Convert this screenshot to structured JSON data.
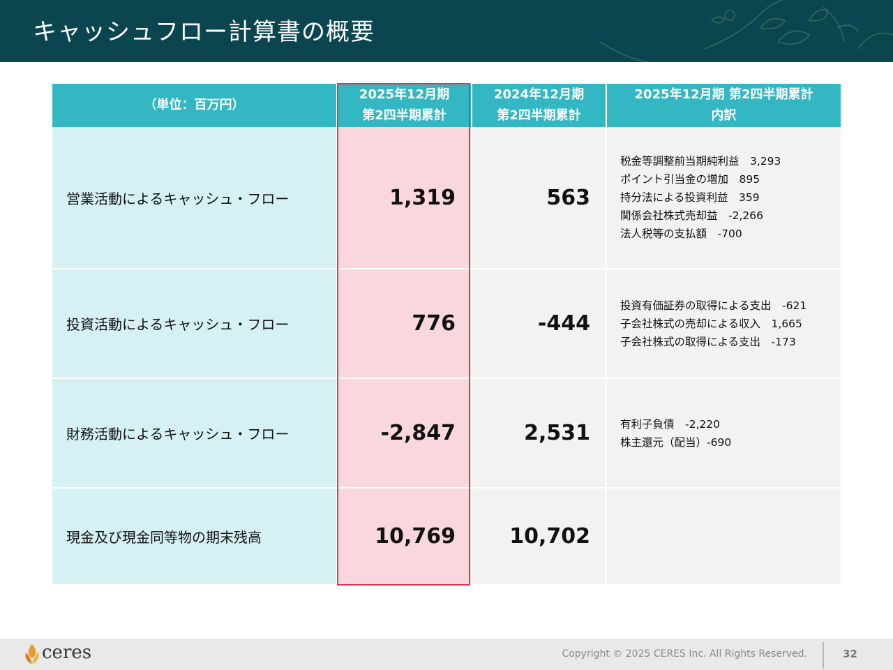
{
  "title": "キャッシュフロー計算書の概要",
  "table": {
    "headers": {
      "unit": "（単位：百万円）",
      "current_line1": "2025年12月期",
      "current_line2": "第2四半期累計",
      "prior_line1": "2024年12月期",
      "prior_line2": "第2四半期累計",
      "breakdown_line1": "2025年12月期 第2四半期累計",
      "breakdown_line2": "内訳"
    },
    "rows": [
      {
        "label": "営業活動によるキャッシュ・フロー",
        "current": "1,319",
        "prior": "563",
        "breakdown": [
          "税金等調整前当期純利益　3,293",
          "ポイント引当金の増加　895",
          "持分法による投資利益　359",
          "関係会社株式売却益　-2,266",
          "法人税等の支払額　-700"
        ]
      },
      {
        "label": "投資活動によるキャッシュ・フロー",
        "current": "776",
        "prior": "-444",
        "breakdown": [
          "投資有価証券の取得による支出　-621",
          "子会社株式の売却による収入　1,665",
          "子会社株式の取得による支出　-173"
        ]
      },
      {
        "label": "財務活動によるキャッシュ・フロー",
        "current": "-2,847",
        "prior": "2,531",
        "breakdown": [
          "有利子負債　-2,220",
          "株主還元（配当）-690"
        ]
      },
      {
        "label": "現金及び現金同等物の期末残高",
        "current": "10,769",
        "prior": "10,702",
        "breakdown": []
      }
    ]
  },
  "footer": {
    "logo_text": "ceres",
    "copyright": "Copyright © 2025 CERES Inc. All Rights Reserved.",
    "page_number": "32"
  },
  "colors": {
    "header_bg": "#0b4650",
    "table_header_bg": "#32b7c3",
    "label_bg": "#d5f1f4",
    "current_bg": "#f8d7dd",
    "highlight_border": "#d23e55"
  }
}
